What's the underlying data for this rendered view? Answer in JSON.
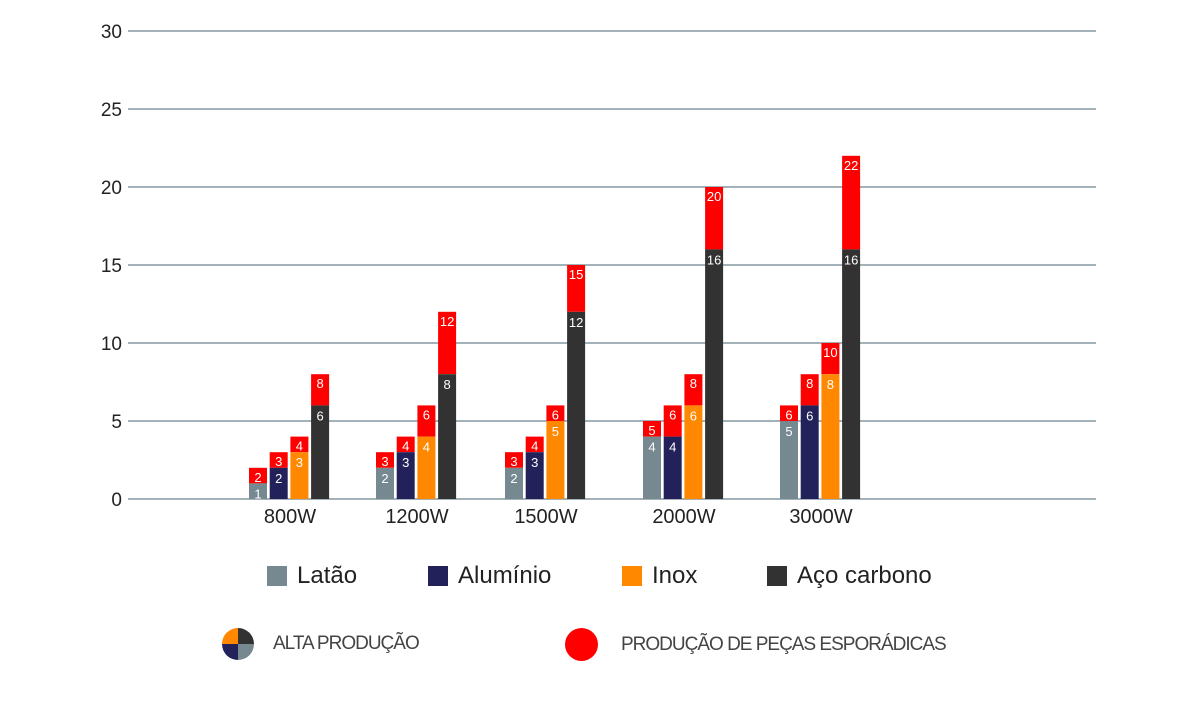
{
  "chart_data": {
    "type": "bar",
    "stacked": true,
    "categories": [
      "800W",
      "1200W",
      "1500W",
      "2000W",
      "3000W"
    ],
    "ylim": [
      0,
      30
    ],
    "yticks": [
      0,
      5,
      10,
      15,
      20,
      25,
      30
    ],
    "grid": true,
    "series": [
      {
        "name": "Latão",
        "color": "#778990",
        "alta": [
          1,
          2,
          2,
          4,
          5
        ],
        "esporadica": [
          2,
          3,
          3,
          5,
          6
        ]
      },
      {
        "name": "Alumínio",
        "color": "#22215a",
        "alta": [
          2,
          3,
          3,
          4,
          6
        ],
        "esporadica": [
          3,
          4,
          4,
          6,
          8
        ]
      },
      {
        "name": "Inox",
        "color": "#ff8800",
        "alta": [
          3,
          4,
          5,
          6,
          8
        ],
        "esporadica": [
          4,
          6,
          6,
          8,
          10
        ]
      },
      {
        "name": "Aço carbono",
        "color": "#323232",
        "alta": [
          6,
          8,
          12,
          16,
          16
        ],
        "esporadica": [
          8,
          12,
          15,
          20,
          22
        ]
      }
    ],
    "esporadica_color": "#ff0000",
    "legend_position": "bottom",
    "legend2": {
      "alta": "ALTA PRODUÇÃO",
      "esporadica": "PRODUÇÃO DE PEÇAS ESPORÁDICAS"
    }
  }
}
